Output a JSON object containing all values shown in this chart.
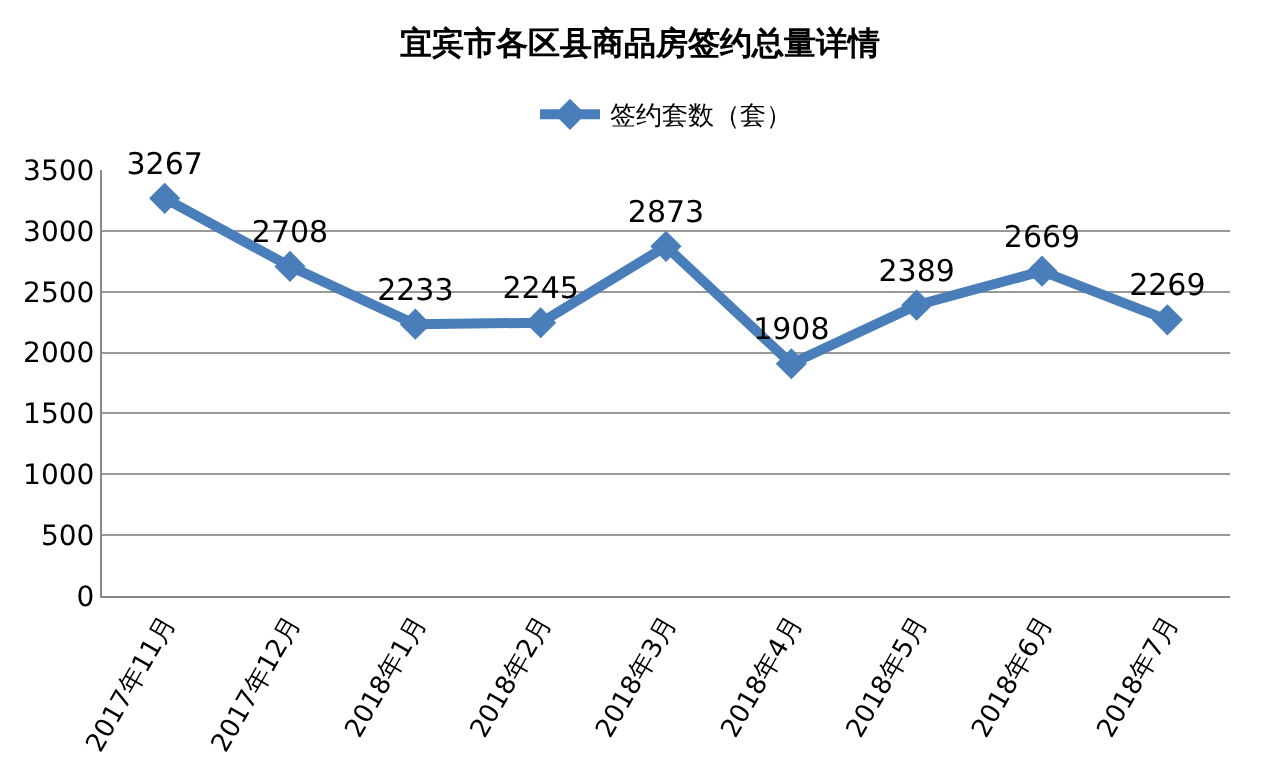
{
  "chart_data": {
    "type": "line",
    "title": "宜宾市各区县商品房签约总量详情",
    "categories": [
      "2017年11月",
      "2017年12月",
      "2018年1月",
      "2018年2月",
      "2018年3月",
      "2018年4月",
      "2018年5月",
      "2018年6月",
      "2018年7月"
    ],
    "series": [
      {
        "name": "签约套数（套）",
        "color": "#4a7ebb",
        "values": [
          3267,
          2708,
          2233,
          2245,
          2873,
          1908,
          2389,
          2669,
          2269
        ]
      }
    ],
    "ylim": [
      0,
      3500
    ],
    "yticks": [
      0,
      500,
      1000,
      1500,
      2000,
      2500,
      3000,
      3500
    ],
    "grid": "y",
    "legend": "top",
    "marker": "diamond",
    "line_style": "solid",
    "data_labels": true
  }
}
